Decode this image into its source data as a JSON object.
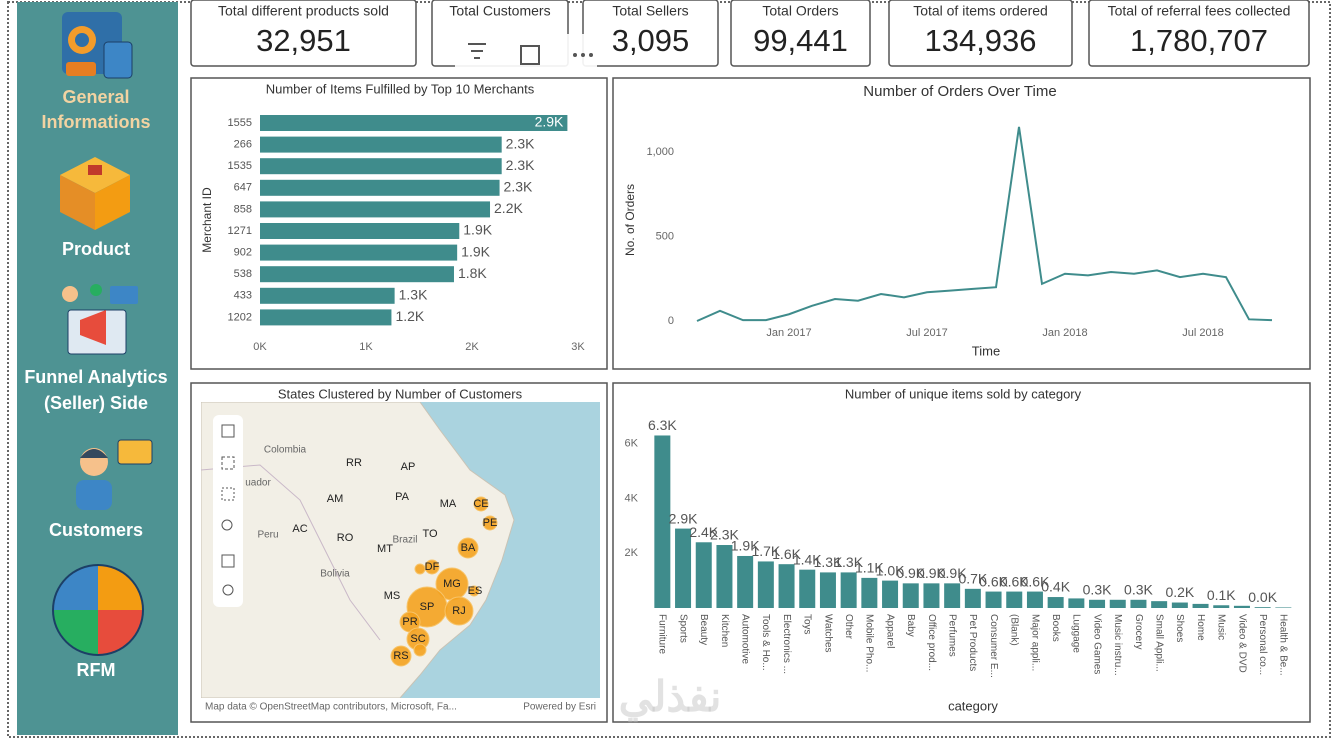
{
  "nav": [
    {
      "lines": [
        "General",
        "Informations"
      ]
    },
    {
      "lines": [
        "Product"
      ]
    },
    {
      "lines": [
        "Funnel Analytics",
        "(Seller) Side"
      ]
    },
    {
      "lines": [
        "Customers"
      ]
    },
    {
      "lines": [
        "RFM"
      ]
    }
  ],
  "cards": [
    {
      "label": "Total different products sold",
      "value": "32,951"
    },
    {
      "label": "Total Customers"
    },
    {
      "label": "Total Sellers",
      "value": "3,095"
    },
    {
      "label": "Total Orders",
      "value": "99,441"
    },
    {
      "label": "Total of items ordered",
      "value": "134,936"
    },
    {
      "label": "Total of referral fees collected",
      "value": "1,780,707"
    }
  ],
  "map": {
    "title": "States Clustered by Number of Customers",
    "places": [
      "Colombia",
      "uador",
      "Peru",
      "Bolivia",
      "Brazil",
      "RR",
      "AP",
      "AM",
      "PA",
      "MA",
      "CE",
      "PE",
      "AC",
      "RO",
      "TO",
      "BA",
      "MT",
      "DF",
      "MG",
      "ES",
      "MS",
      "SP",
      "RJ",
      "PR",
      "SC",
      "RS"
    ],
    "attribution": "Map data © OpenStreetMap contributors, Microsoft, Fa...",
    "powered_by": "Powered by Esri"
  },
  "watermark": "نفذلي",
  "chart_data": [
    {
      "type": "hbar",
      "title": "Number of Items Fulfilled by Top 10 Merchants",
      "y_label": "Merchant ID",
      "categories": [
        "1555",
        "266",
        "1535",
        "647",
        "858",
        "1271",
        "902",
        "538",
        "433",
        "1202"
      ],
      "values": [
        2900,
        2280,
        2280,
        2260,
        2170,
        1880,
        1860,
        1830,
        1270,
        1240
      ],
      "value_labels": [
        "2.9K",
        "2.3K",
        "2.3K",
        "2.3K",
        "2.2K",
        "1.9K",
        "1.9K",
        "1.8K",
        "1.3K",
        "1.2K"
      ],
      "color": "#3f8c8c",
      "xlim": [
        0,
        3000
      ],
      "xticks": [
        {
          "value": 0,
          "label": "0K"
        },
        {
          "value": 1000,
          "label": "1K"
        },
        {
          "value": 2000,
          "label": "2K"
        },
        {
          "value": 3000,
          "label": "3K"
        }
      ]
    },
    {
      "type": "line",
      "title": "Number of Orders Over Time",
      "x_label": "Time",
      "y_label": "No. of Orders",
      "x": [
        "Sep 2016",
        "Oct 2016",
        "Nov 2016",
        "Dec 2016",
        "Jan 2017",
        "Feb 2017",
        "Mar 2017",
        "Apr 2017",
        "May 2017",
        "Jun 2017",
        "Jul 2017",
        "Aug 2017",
        "Sep 2017",
        "Oct 2017",
        "Nov 2017",
        "Dec 2017",
        "Jan 2018",
        "Feb 2018",
        "Mar 2018",
        "Apr 2018",
        "May 2018",
        "Jun 2018",
        "Jul 2018",
        "Aug 2018",
        "Sep 2018",
        "Oct 2018"
      ],
      "values": [
        0,
        60,
        5,
        5,
        40,
        90,
        130,
        120,
        160,
        140,
        170,
        180,
        190,
        200,
        1150,
        220,
        280,
        270,
        290,
        280,
        300,
        260,
        280,
        260,
        10,
        5
      ],
      "color": "#3f8c8c",
      "ylim": [
        0,
        1250
      ],
      "yticks": [
        0,
        500,
        {
          "value": 1000,
          "label": "1,000"
        }
      ],
      "xticks": [
        "Jan 2017",
        "Jul 2017",
        "Jan 2018",
        "Jul 2018"
      ]
    },
    {
      "type": "bar",
      "title": "Number of unique items sold by category",
      "x_label": "category",
      "categories": [
        "Furniture",
        "Sports",
        "Beauty",
        "Kitchen",
        "Automotive",
        "Tools & Ho...",
        "Electronics ...",
        "Toys",
        "Watches",
        "Other",
        "Mobile Pho...",
        "Apparel",
        "Baby",
        "Office prod...",
        "Perfumes",
        "Pet Products",
        "Consumer E...",
        "(Blank)",
        "Major appli...",
        "Books",
        "Luggage",
        "Video Games",
        "Music instru...",
        "Grocery",
        "Small Appli...",
        "Shoes",
        "Home",
        "Music",
        "Video & DVD",
        "Personal co...",
        "Health & Be..."
      ],
      "values": [
        6300,
        2900,
        2400,
        2300,
        1900,
        1700,
        1600,
        1400,
        1300,
        1300,
        1100,
        1000,
        900,
        900,
        900,
        700,
        600,
        600,
        600,
        400,
        350,
        300,
        300,
        300,
        250,
        200,
        150,
        100,
        80,
        30,
        20
      ],
      "value_labels": [
        "6.3K",
        "2.9K",
        "2.4K",
        "2.3K",
        "1.9K",
        "1.7K",
        "1.6K",
        "1.4K",
        "1.3K",
        "1.3K",
        "1.1K",
        "1.0K",
        "0.9K",
        "0.9K",
        "0.9K",
        "0.7K",
        "0.6K",
        "0.6K",
        "0.6K",
        "0.4K",
        null,
        "0.3K",
        null,
        "0.3K",
        null,
        "0.2K",
        null,
        "0.1K",
        null,
        "0.0K",
        null
      ],
      "color": "#3f8c8c",
      "ylim": [
        0,
        6500
      ],
      "yticks": [
        {
          "value": 2000,
          "label": "2K"
        },
        {
          "value": 4000,
          "label": "4K"
        },
        {
          "value": 6000,
          "label": "6K"
        }
      ]
    }
  ]
}
